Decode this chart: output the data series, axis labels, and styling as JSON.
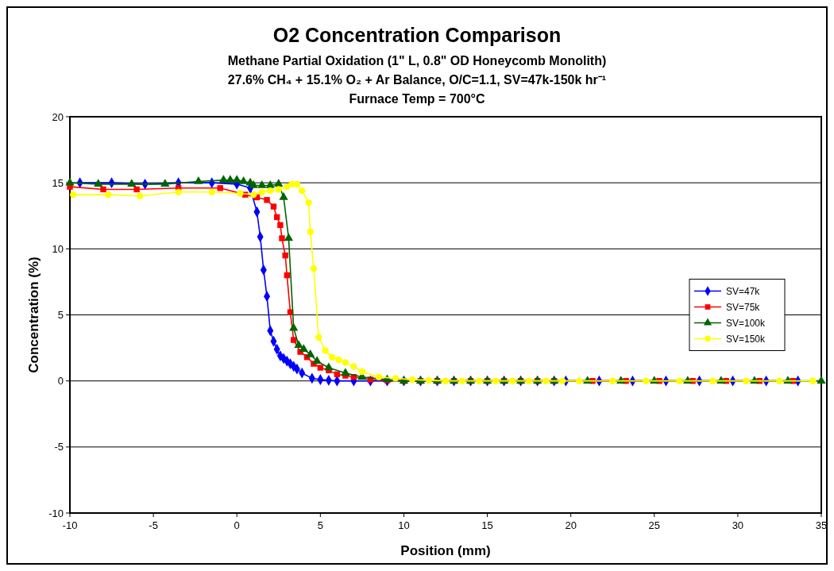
{
  "chart_data": {
    "type": "line",
    "title": "O2 Concentration Comparison",
    "subtitle": "Methane Partial Oxidation (1\" L, 0.8\" OD Honeycomb Monolith)\n27.6% CH₄ + 15.1% O₂ + Ar Balance, O/C=1.1, SV=47k-150k  hr⁻¹\nFurnace Temp = 700°C",
    "xlabel": "Position (mm)",
    "ylabel": "Concentration (%)",
    "xlim": [
      -10,
      35
    ],
    "ylim": [
      -10,
      20
    ],
    "xticks": [
      -10,
      -5,
      0,
      5,
      10,
      15,
      20,
      25,
      30,
      35
    ],
    "yticks": [
      -10,
      -5,
      0,
      5,
      10,
      15,
      20
    ],
    "grid": "y",
    "legend": "right",
    "series": [
      {
        "name": "SV=47k",
        "color": "#0000ff",
        "marker": "diamond",
        "x": [
          -9.4,
          -7.5,
          -5.5,
          -3.5,
          -1.5,
          0,
          0.8,
          1.2,
          1.4,
          1.6,
          1.8,
          2.0,
          2.2,
          2.4,
          2.6,
          2.8,
          3.0,
          3.2,
          3.4,
          3.6,
          3.9,
          4.5,
          5.0,
          5.5,
          6,
          7,
          8,
          9,
          10,
          11,
          12,
          13,
          14,
          15,
          16,
          17,
          18,
          19,
          19.7,
          21.7,
          23.7,
          25.7,
          27.7,
          29.7,
          31.7,
          33.6
        ],
        "values": [
          15.0,
          15.0,
          14.9,
          15.0,
          15.0,
          14.9,
          14.6,
          12.8,
          10.9,
          8.4,
          6.4,
          3.8,
          3.0,
          2.4,
          1.9,
          1.7,
          1.5,
          1.3,
          1.1,
          0.9,
          0.6,
          0.2,
          0.1,
          0.05,
          0,
          0,
          0,
          0,
          0,
          0,
          0,
          0,
          0,
          0,
          0,
          0,
          0,
          0,
          0,
          0,
          0,
          0,
          0,
          0,
          0,
          0
        ]
      },
      {
        "name": "SV=75k",
        "color": "#ff0000",
        "marker": "square",
        "x": [
          -10,
          -8,
          -6,
          -3.5,
          -1,
          0.5,
          1.2,
          1.8,
          2.2,
          2.4,
          2.6,
          2.7,
          2.9,
          3.0,
          3.2,
          3.4,
          3.8,
          4.2,
          4.6,
          5.0,
          5.5,
          6,
          6.5,
          7,
          8,
          9,
          10,
          11,
          12,
          13,
          14,
          15,
          16,
          17,
          18,
          19,
          21.3,
          23.3,
          25.3,
          27.3,
          29.3,
          31.3,
          33.3
        ],
        "values": [
          14.7,
          14.5,
          14.5,
          14.6,
          14.6,
          14.1,
          13.9,
          13.7,
          13.2,
          12.4,
          11.8,
          10.8,
          9.5,
          8.0,
          5.2,
          3.1,
          2.2,
          1.8,
          1.3,
          1.0,
          0.8,
          0.5,
          0.4,
          0.3,
          0.1,
          0.05,
          0,
          0,
          0,
          0,
          0,
          0,
          0,
          0,
          0,
          0,
          0,
          0,
          0,
          0,
          0,
          0,
          0
        ]
      },
      {
        "name": "SV=100k",
        "color": "#006400",
        "marker": "triangle",
        "x": [
          -10,
          -8.3,
          -6.3,
          -4.3,
          -2.3,
          -0.8,
          -0.4,
          0,
          0.4,
          0.8,
          1.0,
          1.5,
          2,
          2.5,
          2.8,
          3.1,
          3.4,
          3.7,
          4.0,
          4.4,
          4.8,
          5.5,
          6.5,
          7.5,
          9,
          10,
          11,
          12,
          13,
          14,
          15,
          16,
          17,
          18,
          19,
          21,
          23,
          25,
          27,
          29,
          31,
          33,
          35
        ],
        "values": [
          15.0,
          14.9,
          14.9,
          14.9,
          15.1,
          15.2,
          15.2,
          15.2,
          15.1,
          15.0,
          14.8,
          14.8,
          14.8,
          14.9,
          13.9,
          10.8,
          4.0,
          2.7,
          2.4,
          2.0,
          1.5,
          1.0,
          0.6,
          0.3,
          0.1,
          0,
          0,
          0,
          0,
          0,
          0,
          0,
          0,
          0,
          0,
          0,
          0,
          0,
          0,
          0,
          0,
          0,
          0
        ]
      },
      {
        "name": "SV=150k",
        "color": "#ffff00",
        "marker": "circle",
        "x": [
          -9.8,
          -7.7,
          -5.8,
          -3.5,
          -1.5,
          0.2,
          1.0,
          1.5,
          2.0,
          2.5,
          3.0,
          3.3,
          3.6,
          3.9,
          4.3,
          4.4,
          4.6,
          4.9,
          5.3,
          5.7,
          6.1,
          6.5,
          7,
          7.5,
          8.5,
          9.5,
          10.5,
          11.5,
          12.5,
          13.5,
          14.5,
          15.5,
          16.5,
          17.5,
          18.5,
          19.5,
          20.5,
          22.5,
          24.5,
          26.5,
          28.5,
          30.5,
          32.5,
          34.5
        ],
        "values": [
          14.1,
          14.1,
          14.0,
          14.3,
          14.3,
          14.2,
          14.1,
          14.3,
          14.4,
          14.5,
          14.7,
          14.9,
          14.9,
          14.4,
          13.5,
          11.3,
          8.5,
          3.3,
          2.3,
          1.8,
          1.6,
          1.4,
          1.1,
          0.7,
          0.3,
          0.2,
          0.1,
          0.05,
          0,
          0,
          0,
          0,
          0,
          0,
          0,
          0,
          0,
          0,
          0,
          0,
          0,
          0,
          0,
          0
        ]
      }
    ]
  }
}
